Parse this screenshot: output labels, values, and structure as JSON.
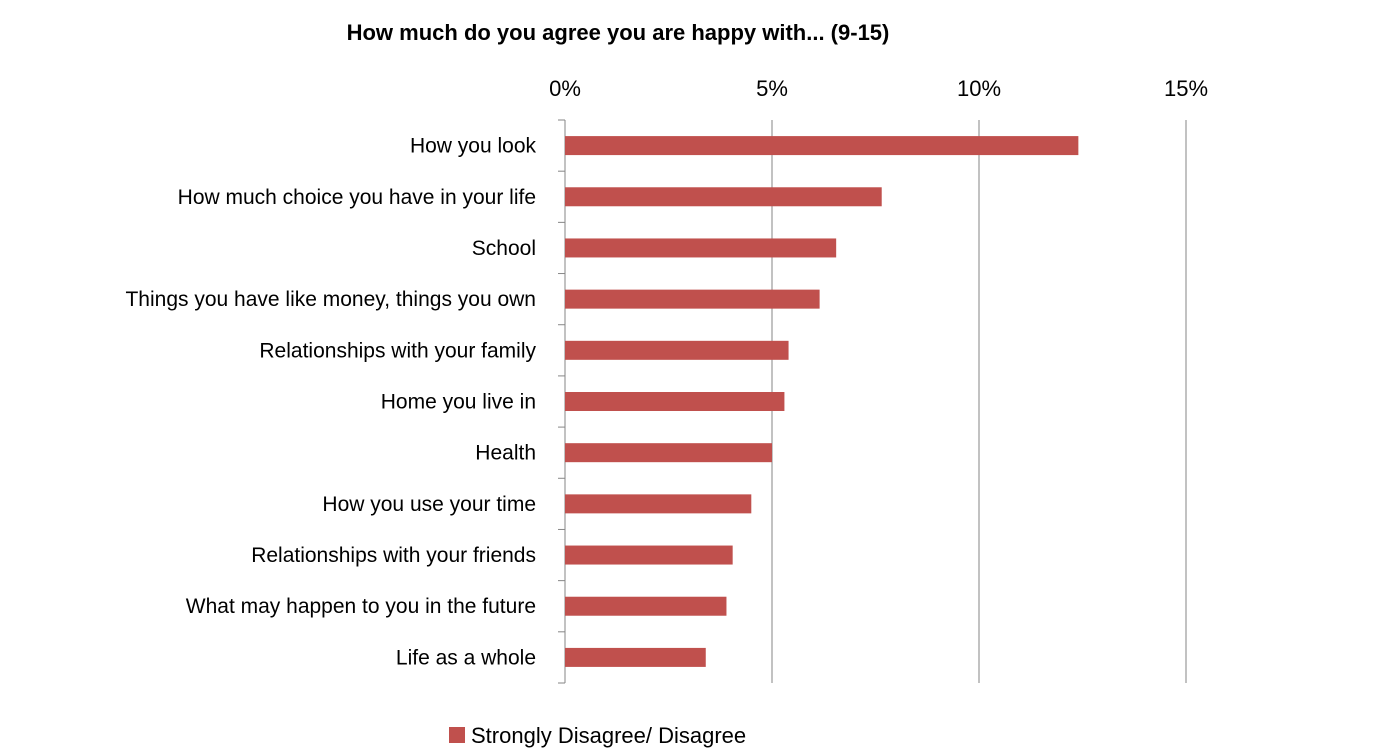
{
  "chart_data": {
    "type": "bar",
    "orientation": "horizontal",
    "title": "How much do you agree you are happy with... (9-15)",
    "xlabel": "",
    "ylabel": "",
    "xlim": [
      0,
      15
    ],
    "x_ticks": [
      0,
      5,
      10,
      15
    ],
    "x_tick_labels": [
      "0%",
      "5%",
      "10%",
      "15%"
    ],
    "x_axis_position": "top",
    "grid": "vertical major gridlines",
    "legend_position": "bottom",
    "categories": [
      "How you look",
      "How much choice you have in your life",
      "School",
      "Things you have like money, things you own",
      "Relationships with your family",
      "Home you live in",
      "Health",
      "How you use your time",
      "Relationships with your friends",
      "What may happen to you in the future",
      "Life as a whole"
    ],
    "series": [
      {
        "name": "Strongly Disagree/ Disagree",
        "color": "#c0504d",
        "values": [
          12.4,
          7.65,
          6.55,
          6.15,
          5.4,
          5.3,
          5.0,
          4.5,
          4.05,
          3.9,
          3.4
        ]
      }
    ]
  }
}
